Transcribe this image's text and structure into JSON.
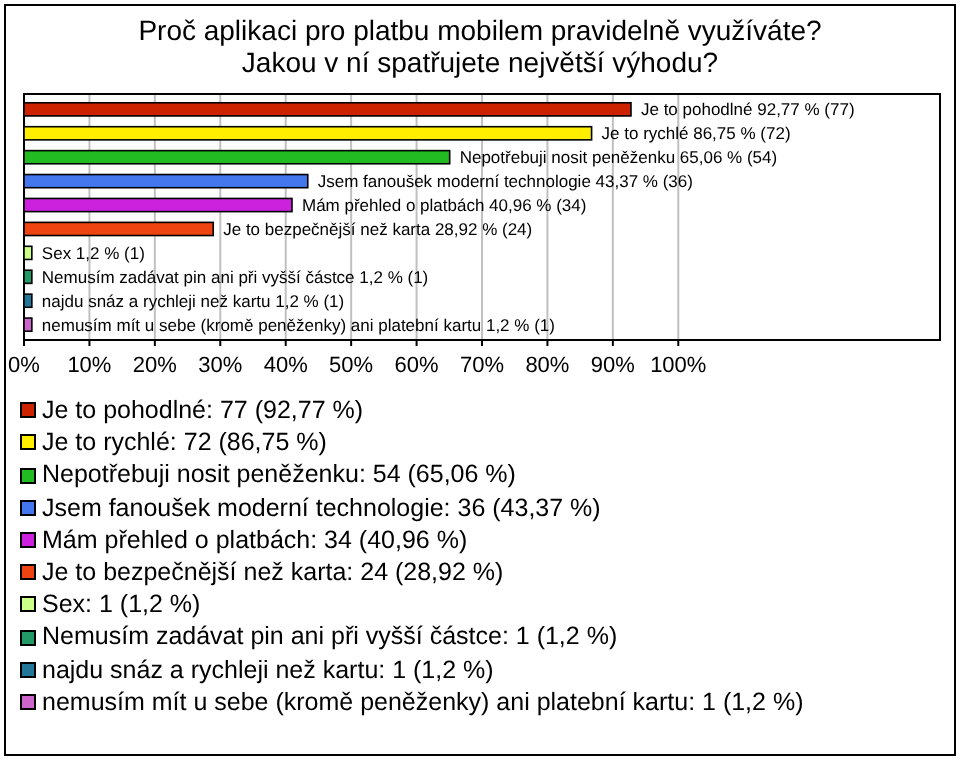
{
  "chart_data": {
    "type": "bar",
    "orientation": "horizontal",
    "title": "Proč aplikaci pro platbu mobilem pravidelně využíváte? Jakou v ní spatřujete největší výhodu?",
    "categories": [
      "Je to pohodlné 92,77 % (77)",
      "Je to rychlé 86,75 % (72)",
      "Nepotřebuji nosit peněženku 65,06 % (54)",
      "Jsem fanoušek moderní technologie 43,37 % (36)",
      "Mám přehled o platbách 40,96 % (34)",
      "Je to bezpečnější než karta 28,92 % (24)",
      "Sex 1,2 % (1)",
      "Nemusím zadávat pin ani při vyšší částce 1,2 % (1)",
      "najdu snáz a rychleji než kartu 1,2 % (1)",
      "nemusím mít u sebe (kromě peněženky) ani platební kartu 1,2 % (1)"
    ],
    "values": [
      92.77,
      86.75,
      65.06,
      43.37,
      40.96,
      28.92,
      1.2,
      1.2,
      1.2,
      1.2
    ],
    "colors": [
      "#cc2200",
      "#ffee00",
      "#22bb22",
      "#4477ee",
      "#cc22dd",
      "#ee4411",
      "#ccff88",
      "#229966",
      "#227799",
      "#cc66cc"
    ],
    "xlim": [
      0,
      140
    ],
    "xticks": [
      {
        "value": 0,
        "label": "0%"
      },
      {
        "value": 10,
        "label": "10%"
      },
      {
        "value": 20,
        "label": "20%"
      },
      {
        "value": 30,
        "label": "30%"
      },
      {
        "value": 40,
        "label": "40%"
      },
      {
        "value": 50,
        "label": "50%"
      },
      {
        "value": 60,
        "label": "60%"
      },
      {
        "value": 70,
        "label": "70%"
      },
      {
        "value": 80,
        "label": "80%"
      },
      {
        "value": 90,
        "label": "90%"
      },
      {
        "value": 100,
        "label": "100%"
      }
    ],
    "annotations": [
      "Je to pohodlné: 77 (92,77 %)",
      "Je to rychlé: 72 (86,75 %)",
      "Nepotřebuji nosit peněženku: 54 (65,06 %)",
      "Jsem fanoušek moderní technologie: 36 (43,37 %)",
      "Mám přehled o platbách: 34 (40,96 %)",
      "Je to bezpečnější než karta: 24 (28,92 %)",
      "Sex: 1 (1,2 %)",
      "Nemusím zadávat pin ani při vyšší částce: 1 (1,2 %)",
      "najdu snáz a rychleji než kartu: 1 (1,2 %)",
      "nemusím mít u sebe (kromě peněženky) ani platební kartu: 1 (1,2 %)"
    ],
    "grid": "x"
  }
}
